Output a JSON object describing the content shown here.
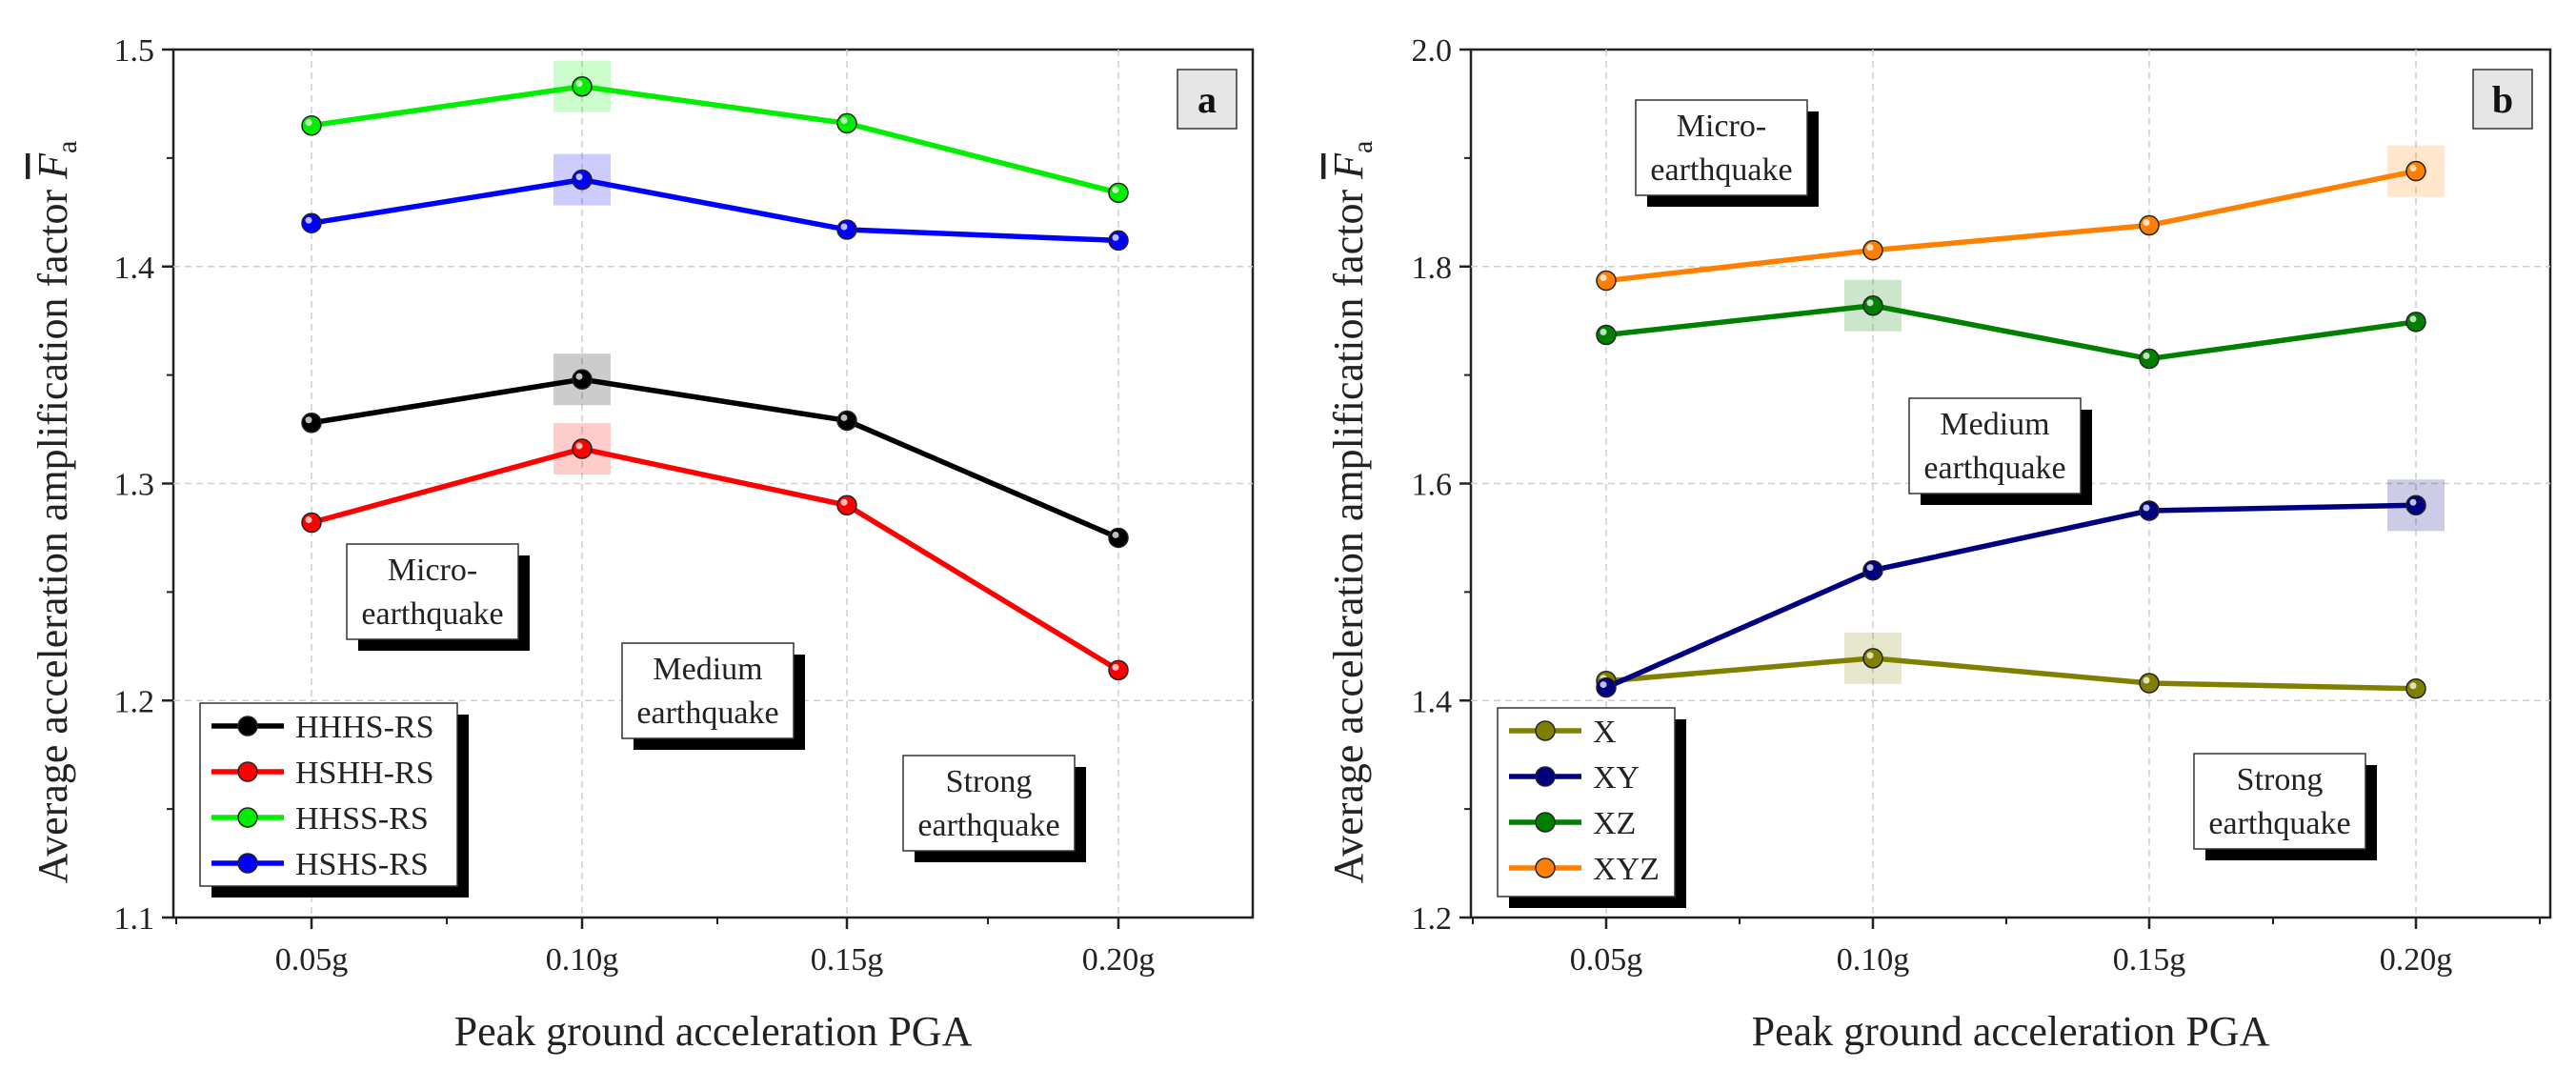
{
  "chart_data": [
    {
      "type": "line",
      "panel": "a",
      "categories": [
        "0.05g",
        "0.10g",
        "0.15g",
        "0.20g"
      ],
      "xlabel": "Peak ground acceleration PGA",
      "ylabel_main": "Average acceleration amplification factor ",
      "ylabel_symbol": "F",
      "ylabel_sub": "a",
      "ylim": [
        1.1,
        1.5
      ],
      "yticks": [
        "1.1",
        "1.2",
        "1.3",
        "1.4",
        "1.5"
      ],
      "grid": true,
      "legend_position": "bottom-left",
      "series": [
        {
          "name": "HHHS-RS",
          "color": "#000000",
          "values": [
            1.328,
            1.348,
            1.329,
            1.275
          ],
          "highlight_index": 1
        },
        {
          "name": "HSHH-RS",
          "color": "#ff0000",
          "values": [
            1.282,
            1.316,
            1.29,
            1.214
          ],
          "highlight_index": 1
        },
        {
          "name": "HHSS-RS",
          "color": "#00ee00",
          "values": [
            1.465,
            1.483,
            1.466,
            1.434
          ],
          "highlight_index": 1
        },
        {
          "name": "HSHS-RS",
          "color": "#0000ff",
          "values": [
            1.42,
            1.44,
            1.417,
            1.412
          ],
          "highlight_index": 1
        }
      ],
      "annotations": [
        {
          "lines": [
            "Micro-",
            "earthquake"
          ]
        },
        {
          "lines": [
            "Medium",
            "earthquake"
          ]
        },
        {
          "lines": [
            "Strong",
            "earthquake"
          ]
        }
      ]
    },
    {
      "type": "line",
      "panel": "b",
      "categories": [
        "0.05g",
        "0.10g",
        "0.15g",
        "0.20g"
      ],
      "xlabel": "Peak ground acceleration PGA",
      "ylabel_main": "Average acceleration amplification factor ",
      "ylabel_symbol": "F",
      "ylabel_sub": "a",
      "ylim": [
        1.2,
        2.0
      ],
      "yticks": [
        "1.2",
        "1.4",
        "1.6",
        "1.8",
        "2.0"
      ],
      "grid": true,
      "legend_position": "bottom-left",
      "series": [
        {
          "name": "X",
          "color": "#808000",
          "values": [
            1.418,
            1.439,
            1.416,
            1.411
          ],
          "highlight_index": 1
        },
        {
          "name": "XY",
          "color": "#000080",
          "values": [
            1.412,
            1.52,
            1.575,
            1.58
          ],
          "highlight_index": 3
        },
        {
          "name": "XZ",
          "color": "#008000",
          "values": [
            1.737,
            1.764,
            1.715,
            1.749
          ],
          "highlight_index": 1
        },
        {
          "name": "XYZ",
          "color": "#ff8000",
          "values": [
            1.787,
            1.815,
            1.838,
            1.888
          ],
          "highlight_index": 3
        }
      ],
      "annotations": [
        {
          "lines": [
            "Micro-",
            "earthquake"
          ]
        },
        {
          "lines": [
            "Medium",
            "earthquake"
          ]
        },
        {
          "lines": [
            "Strong",
            "earthquake"
          ]
        }
      ]
    }
  ]
}
